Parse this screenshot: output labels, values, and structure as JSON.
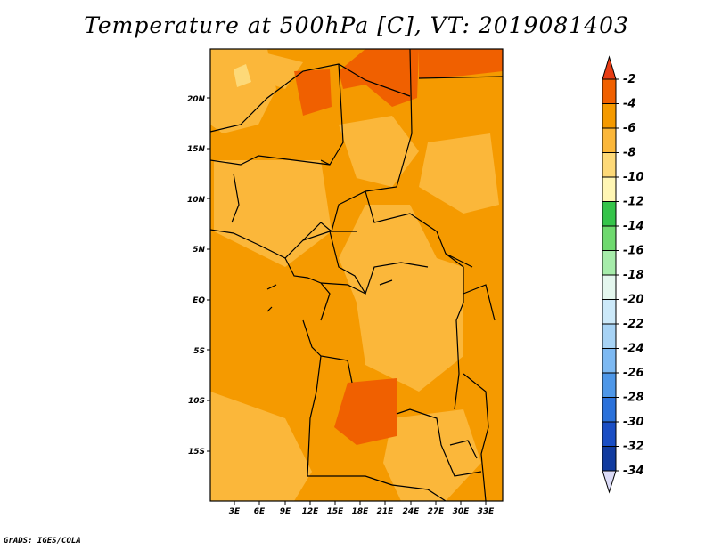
{
  "title": "Temperature at 500hPa [C], VT: 2019081403",
  "footer": "GrADS: IGES/COLA",
  "map": {
    "lon_range": [
      0,
      36
    ],
    "lat_range": [
      -20,
      25
    ],
    "lon_ticks": [
      "3E",
      "6E",
      "9E",
      "12E",
      "15E",
      "18E",
      "21E",
      "24E",
      "27E",
      "30E",
      "33E"
    ],
    "lat_ticks": [
      "20N",
      "15N",
      "10N",
      "5N",
      "EQ",
      "5S",
      "10S",
      "15S"
    ]
  },
  "colorbar": {
    "labels": [
      "-2",
      "-4",
      "-6",
      "-8",
      "-10",
      "-12",
      "-14",
      "-16",
      "-18",
      "-20",
      "-22",
      "-24",
      "-26",
      "-28",
      "-30",
      "-32",
      "-34"
    ],
    "colors": [
      "#e83c14",
      "#f06000",
      "#f59a00",
      "#fbb73a",
      "#fdd978",
      "#fff6b4",
      "#35c44a",
      "#6ed96e",
      "#a6ecaa",
      "#e4f7ee",
      "#cce9f9",
      "#a7d3f5",
      "#7db9f2",
      "#4e97e8",
      "#2b71da",
      "#1a4ec4",
      "#113b9f",
      "#0a1a6e",
      "#dcdcf8"
    ]
  }
}
